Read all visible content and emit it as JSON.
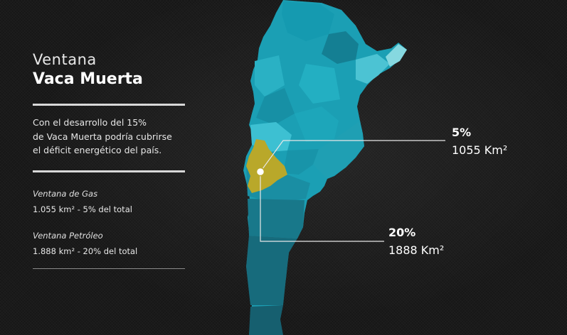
{
  "header": {
    "title_light": "Ventana",
    "title_bold": "Vaca Muerta"
  },
  "description": {
    "line1": "Con el desarrollo del 15%",
    "line2": "de Vaca Muerta podría cubrirse",
    "line3": "el déficit energético del país."
  },
  "windows": [
    {
      "title": "Ventana de Gas",
      "value": "1.055 km² -  5% del total"
    },
    {
      "title": "Ventana Petróleo",
      "value": "1.888 km² - 20% del total"
    }
  ],
  "callouts": [
    {
      "percent": "5%",
      "area": "1055 Km²"
    },
    {
      "percent": "20%",
      "area": "1888 Km²"
    }
  ],
  "colors": {
    "map_main": "#1b9fb4",
    "map_light": "#4cc3d3",
    "map_dark": "#147f93",
    "map_south": "#176b7c",
    "vaca_muerta": "#b9a82a",
    "leader_line": "#e8e8e8"
  }
}
